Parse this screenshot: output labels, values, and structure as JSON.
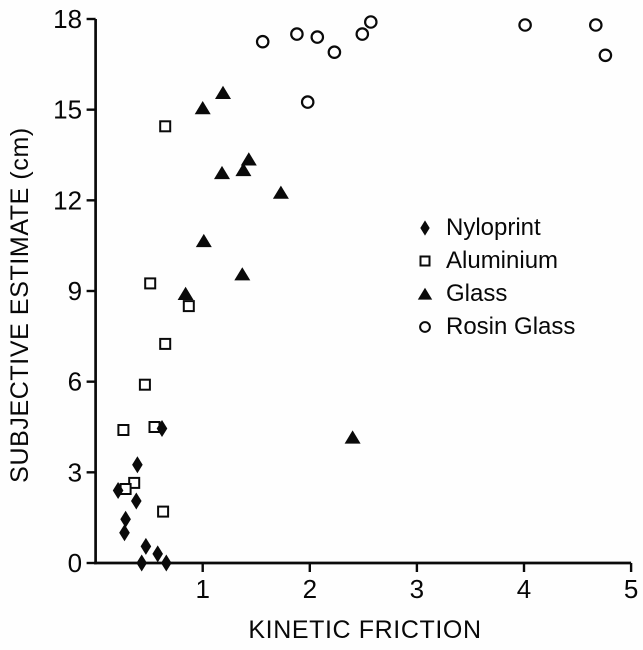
{
  "figure": {
    "background": "#fefefe",
    "ink_color": "#0a0a0a"
  },
  "chart_data": {
    "type": "scatter",
    "title": "",
    "xlabel": "KINETIC FRICTION",
    "ylabel": "SUBJECTIVE ESTIMATE (cm)",
    "xlim": [
      0,
      5
    ],
    "ylim": [
      0,
      18
    ],
    "x_ticks": [
      1,
      2,
      3,
      4,
      5
    ],
    "y_ticks": [
      0,
      3,
      6,
      9,
      12,
      15,
      18
    ],
    "grid": false,
    "legend_position": "middle-right",
    "series": [
      {
        "name": "Nyloprint",
        "marker": "filled-diamond",
        "points": [
          [
            0.62,
            4.45
          ],
          [
            0.39,
            3.25
          ],
          [
            0.21,
            2.4
          ],
          [
            0.38,
            2.05
          ],
          [
            0.28,
            1.45
          ],
          [
            0.27,
            1.0
          ],
          [
            0.47,
            0.55
          ],
          [
            0.58,
            0.3
          ],
          [
            0.43,
            0.0
          ],
          [
            0.66,
            0.0
          ]
        ]
      },
      {
        "name": "Aluminium",
        "marker": "open-square",
        "points": [
          [
            0.65,
            14.45
          ],
          [
            0.51,
            9.25
          ],
          [
            0.87,
            8.5
          ],
          [
            0.65,
            7.25
          ],
          [
            0.46,
            5.9
          ],
          [
            0.26,
            4.4
          ],
          [
            0.55,
            4.5
          ],
          [
            0.36,
            2.65
          ],
          [
            0.28,
            2.45
          ],
          [
            0.63,
            1.7
          ]
        ]
      },
      {
        "name": "Glass",
        "marker": "filled-triangle",
        "points": [
          [
            1.19,
            15.55
          ],
          [
            1.0,
            15.05
          ],
          [
            1.43,
            13.35
          ],
          [
            1.38,
            13.0
          ],
          [
            1.18,
            12.9
          ],
          [
            1.73,
            12.25
          ],
          [
            1.01,
            10.65
          ],
          [
            1.37,
            9.55
          ],
          [
            0.84,
            8.9
          ],
          [
            2.4,
            4.15
          ]
        ]
      },
      {
        "name": "Rosin Glass",
        "marker": "open-circle",
        "points": [
          [
            1.56,
            17.25
          ],
          [
            1.88,
            17.5
          ],
          [
            2.07,
            17.4
          ],
          [
            2.23,
            16.9
          ],
          [
            2.49,
            17.5
          ],
          [
            2.57,
            17.9
          ],
          [
            1.98,
            15.25
          ],
          [
            4.01,
            17.8
          ],
          [
            4.67,
            17.8
          ],
          [
            4.76,
            16.8
          ]
        ]
      }
    ]
  }
}
